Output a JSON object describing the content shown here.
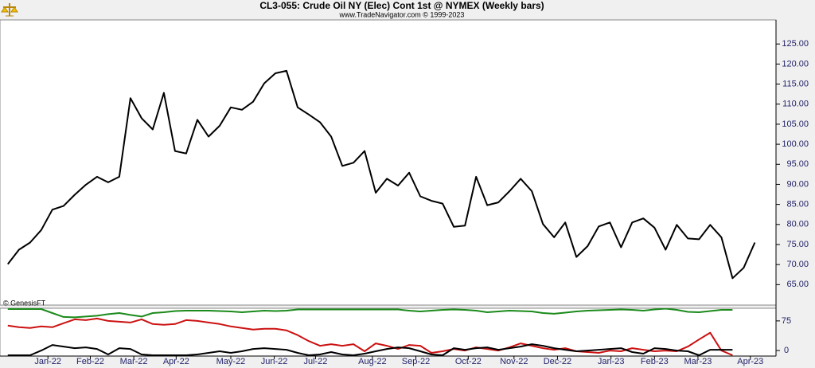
{
  "chart_data": {
    "type": "line",
    "title": "CL3-055:  Crude Oil NY (Elec) Cont 1st @ NYMEX  (Weekly bars)",
    "subtitle": "www.TradeNavigator.com © 1999-2023",
    "watermark": "© GenesisFT",
    "xlim": [
      -0.7,
      68.9
    ],
    "xticks": [
      {
        "value": 3.6,
        "label": "Jan-22"
      },
      {
        "value": 7.4,
        "label": "Feb-22"
      },
      {
        "value": 11.3,
        "label": "Mar-22"
      },
      {
        "value": 15.1,
        "label": "Apr-22"
      },
      {
        "value": 20.0,
        "label": "May-22"
      },
      {
        "value": 23.9,
        "label": "Jun-22"
      },
      {
        "value": 27.6,
        "label": "Jul-22"
      },
      {
        "value": 32.7,
        "label": "Aug-22"
      },
      {
        "value": 36.6,
        "label": "Sep-22"
      },
      {
        "value": 41.3,
        "label": "Oct-22"
      },
      {
        "value": 45.4,
        "label": "Nov-22"
      },
      {
        "value": 49.3,
        "label": "Dec-22"
      },
      {
        "value": 54.1,
        "label": "Jan-23"
      },
      {
        "value": 58.0,
        "label": "Feb-23"
      },
      {
        "value": 61.9,
        "label": "Mar-23"
      },
      {
        "value": 66.6,
        "label": "Apr-23"
      }
    ],
    "ylim": [
      59.9,
      131.0
    ],
    "yticks": [
      {
        "value": 65,
        "label": "65.00"
      },
      {
        "value": 70,
        "label": "70.00"
      },
      {
        "value": 75,
        "label": "75.00"
      },
      {
        "value": 80,
        "label": "80.00"
      },
      {
        "value": 85,
        "label": "85.00"
      },
      {
        "value": 90,
        "label": "90.00"
      },
      {
        "value": 95,
        "label": "95.00"
      },
      {
        "value": 100,
        "label": "100.00"
      },
      {
        "value": 105,
        "label": "105.00"
      },
      {
        "value": 110,
        "label": "110.00"
      },
      {
        "value": 115,
        "label": "115.00"
      },
      {
        "value": 120,
        "label": "120.00"
      },
      {
        "value": 125,
        "label": "125.00"
      }
    ],
    "series": [
      {
        "color": "#000000",
        "values": [
          70.1,
          73.7,
          75.5,
          78.6,
          83.7,
          84.6,
          87.4,
          89.9,
          91.9,
          90.5,
          91.9,
          111.5,
          106.5,
          103.7,
          112.8,
          98.3,
          97.7,
          106.1,
          101.9,
          104.6,
          109.2,
          108.6,
          110.6,
          115.2,
          117.7,
          118.3,
          109.2,
          107.4,
          105.5,
          101.9,
          94.6,
          95.4,
          98.3,
          87.9,
          91.4,
          89.7,
          92.9,
          87.0,
          85.9,
          85.2,
          79.4,
          79.7,
          91.9,
          84.8,
          85.5,
          88.3,
          91.4,
          88.3,
          80.1,
          76.8,
          80.5,
          71.9,
          74.6,
          79.5,
          80.5,
          74.3,
          80.5,
          81.5,
          79.2,
          73.7,
          79.9,
          76.5,
          76.3,
          79.9,
          76.8,
          66.6,
          69.2,
          75.5
        ]
      }
    ],
    "lower": {
      "ylim": [
        -14,
        107
      ],
      "yticks": [
        0,
        75
      ],
      "series": [
        {
          "color": "#1a8a1a",
          "values": [
            105,
            105,
            105,
            105,
            95,
            85,
            84,
            86,
            88,
            92,
            95,
            90,
            86,
            95,
            97,
            100,
            101,
            101,
            101,
            100,
            99,
            97,
            99,
            101,
            100,
            101,
            104,
            104,
            104,
            104,
            104,
            104,
            104,
            104,
            104,
            104,
            101,
            99,
            101,
            103,
            104,
            103,
            101,
            97,
            99,
            101,
            100,
            99,
            95,
            93,
            96,
            99,
            101,
            102,
            103,
            104,
            103,
            101,
            104,
            106,
            103,
            98,
            97,
            100,
            103,
            103
          ]
        },
        {
          "color": "#cc1111",
          "values": [
            63,
            59,
            57,
            61,
            59,
            69,
            79,
            77,
            81,
            75,
            73,
            71,
            79,
            67,
            65,
            67,
            77,
            75,
            71,
            67,
            61,
            57,
            53,
            55,
            55,
            51,
            39,
            24,
            12,
            16,
            12,
            16,
            -2,
            18,
            12,
            4,
            14,
            12,
            -6,
            -2,
            4,
            0,
            8,
            4,
            0,
            8,
            18,
            12,
            6,
            2,
            6,
            -2,
            -4,
            -6,
            0,
            -2,
            6,
            2,
            -2,
            0,
            -2,
            10,
            28,
            45,
            0,
            -12
          ]
        },
        {
          "color": "#000000",
          "values": [
            -12,
            -12,
            -12,
            0,
            14,
            10,
            6,
            8,
            4,
            -10,
            6,
            4,
            -10,
            -12,
            -12,
            -12,
            -12,
            -10,
            -6,
            -2,
            -6,
            -2,
            4,
            6,
            4,
            2,
            -6,
            -12,
            -10,
            -4,
            -10,
            -12,
            -8,
            -2,
            4,
            8,
            6,
            -2,
            -10,
            -12,
            6,
            2,
            6,
            8,
            2,
            6,
            10,
            16,
            12,
            6,
            2,
            -2,
            0,
            2,
            4,
            6,
            -4,
            -8,
            6,
            4,
            0,
            -2,
            -12,
            2,
            2,
            2
          ]
        }
      ]
    }
  }
}
